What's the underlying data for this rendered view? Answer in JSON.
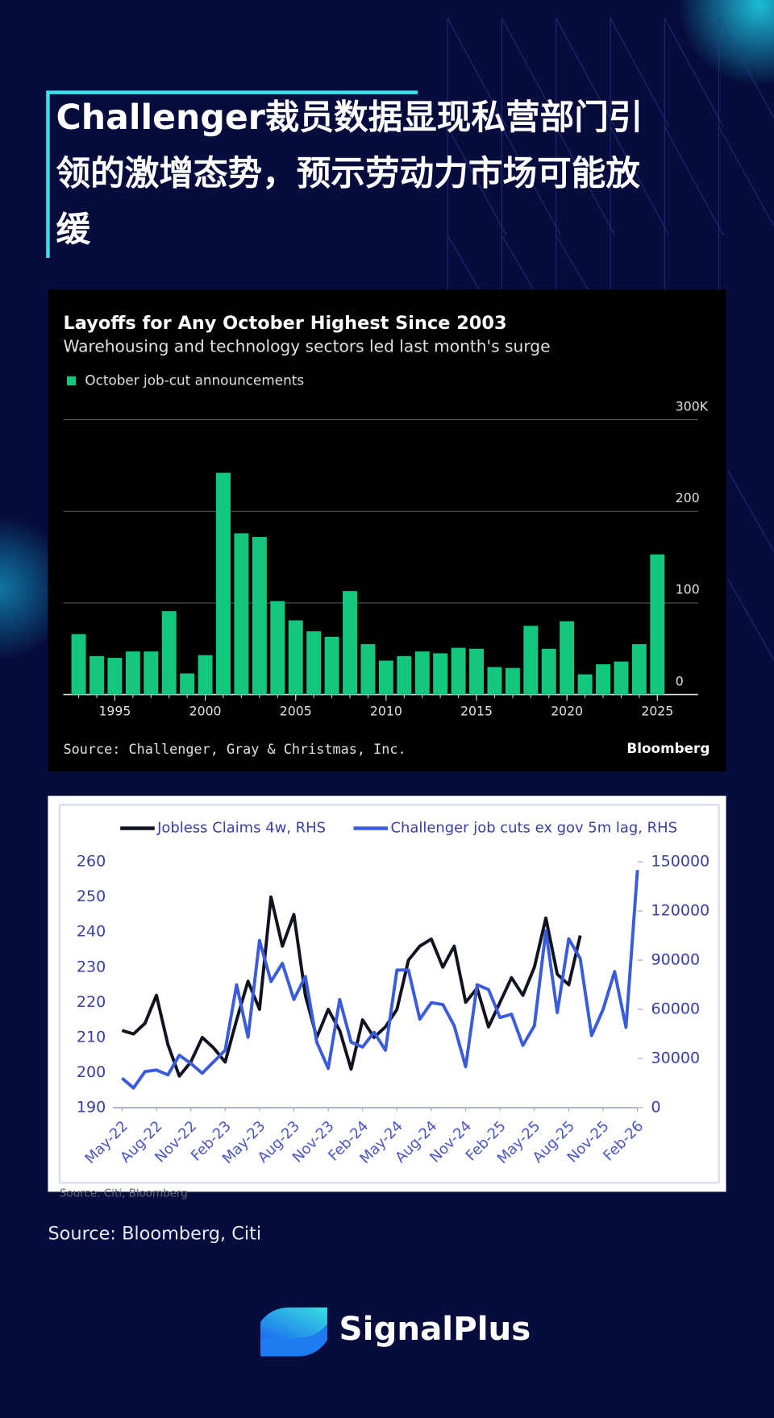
{
  "header": {
    "title_lines": [
      "Challenger裁员数据显现私营部门引",
      "领的激增态势，预示劳动力市场可能放",
      "缓"
    ]
  },
  "chart_data": [
    {
      "type": "bar",
      "title": "Layoffs for Any October Highest Since 2003",
      "subtitle": "Warehousing and technology sectors led last month's surge",
      "x": [
        1993,
        1994,
        1995,
        1996,
        1997,
        1998,
        1999,
        2000,
        2001,
        2002,
        2003,
        2004,
        2005,
        2006,
        2007,
        2008,
        2009,
        2010,
        2011,
        2012,
        2013,
        2014,
        2015,
        2016,
        2017,
        2018,
        2019,
        2020,
        2021,
        2022,
        2023,
        2024,
        2025
      ],
      "series": [
        {
          "name": "October job-cut announcements",
          "color": "#14c77f",
          "values": [
            66,
            42,
            40,
            47,
            47,
            91,
            23,
            43,
            242,
            176,
            172,
            102,
            81,
            69,
            63,
            113,
            55,
            37,
            42,
            47,
            45,
            51,
            50,
            30,
            29,
            75,
            50,
            80,
            22,
            33,
            36,
            55,
            153
          ]
        }
      ],
      "xlim": [
        1992,
        2027
      ],
      "xticks": [
        1995,
        2000,
        2005,
        2010,
        2015,
        2020,
        2025
      ],
      "ylim": [
        0,
        300
      ],
      "yticks": [
        0,
        100,
        200,
        {
          "value": 300,
          "label": "300K"
        }
      ],
      "grid": true,
      "y_axis_side": "right",
      "source": "Source: Challenger, Gray & Christmas, Inc.",
      "brand": "Bloomberg"
    },
    {
      "type": "line",
      "x": [
        "2022-05",
        "2022-06",
        "2022-07",
        "2022-08",
        "2022-09",
        "2022-10",
        "2022-11",
        "2022-12",
        "2023-01",
        "2023-02",
        "2023-03",
        "2023-04",
        "2023-05",
        "2023-06",
        "2023-07",
        "2023-08",
        "2023-09",
        "2023-10",
        "2023-11",
        "2023-12",
        "2024-01",
        "2024-02",
        "2024-03",
        "2024-04",
        "2024-05",
        "2024-06",
        "2024-07",
        "2024-08",
        "2024-09",
        "2024-10",
        "2024-11",
        "2024-12",
        "2025-01",
        "2025-02",
        "2025-03",
        "2025-04",
        "2025-05",
        "2025-06",
        "2025-07",
        "2025-08",
        "2025-09",
        "2025-10",
        "2025-11",
        "2025-12",
        "2026-01",
        "2026-02"
      ],
      "series": [
        {
          "name": "Jobless Claims 4w, RHS",
          "color": "#10131f",
          "axis": "y",
          "values": [
            212,
            211,
            214,
            222,
            208,
            199,
            203,
            210,
            207,
            203,
            215,
            226,
            218,
            250,
            236,
            245,
            222,
            210,
            218,
            212,
            201,
            215,
            210,
            213,
            218,
            232,
            236,
            238,
            230,
            236,
            220,
            224,
            213,
            220,
            227,
            222,
            230,
            244,
            228,
            225,
            239,
            null,
            null,
            null,
            null,
            null
          ]
        },
        {
          "name": "Challenger job cuts ex gov 5m lag, RHS",
          "color": "#3a5bdc",
          "axis": "y2",
          "values": [
            18000,
            12000,
            22000,
            23000,
            20000,
            32000,
            27000,
            21000,
            28000,
            35000,
            75000,
            43000,
            102000,
            77000,
            88000,
            66000,
            80000,
            40000,
            24000,
            66000,
            40000,
            37000,
            46000,
            35000,
            84000,
            84000,
            54000,
            64000,
            63000,
            50000,
            25000,
            75000,
            72000,
            55000,
            57000,
            38000,
            50000,
            108000,
            58000,
            103000,
            91000,
            44000,
            60000,
            83000,
            49000,
            145000
          ]
        }
      ],
      "xlim": [
        "2022-05",
        "2026-02"
      ],
      "xticks": [
        {
          "value": "2022-05",
          "label": "May-22"
        },
        {
          "value": "2022-08",
          "label": "Aug-22"
        },
        {
          "value": "2022-11",
          "label": "Nov-22"
        },
        {
          "value": "2023-02",
          "label": "Feb-23"
        },
        {
          "value": "2023-05",
          "label": "May-23"
        },
        {
          "value": "2023-08",
          "label": "Aug-23"
        },
        {
          "value": "2023-11",
          "label": "Nov-23"
        },
        {
          "value": "2024-02",
          "label": "Feb-24"
        },
        {
          "value": "2024-05",
          "label": "May-24"
        },
        {
          "value": "2024-08",
          "label": "Aug-24"
        },
        {
          "value": "2024-11",
          "label": "Nov-24"
        },
        {
          "value": "2025-02",
          "label": "Feb-25"
        },
        {
          "value": "2025-05",
          "label": "May-25"
        },
        {
          "value": "2025-08",
          "label": "Aug-25"
        },
        {
          "value": "2025-11",
          "label": "Nov-25"
        },
        {
          "value": "2026-02",
          "label": "Feb-26"
        }
      ],
      "ylim": [
        190,
        260
      ],
      "yticks": [
        190,
        200,
        210,
        220,
        230,
        240,
        250,
        260
      ],
      "y2lim": [
        0,
        150000
      ],
      "y2ticks": [
        0,
        30000,
        60000,
        90000,
        120000,
        150000
      ],
      "source": "Source: Citi, Bloomberg"
    }
  ],
  "source": "Source: Bloomberg, Citi",
  "brand": "SignalPlus"
}
